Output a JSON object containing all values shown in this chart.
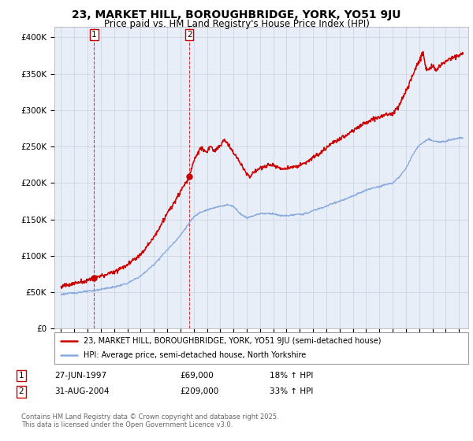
{
  "title": "23, MARKET HILL, BOROUGHBRIDGE, YORK, YO51 9JU",
  "subtitle": "Price paid vs. HM Land Registry's House Price Index (HPI)",
  "ylabel_ticks": [
    "£0",
    "£50K",
    "£100K",
    "£150K",
    "£200K",
    "£250K",
    "£300K",
    "£350K",
    "£400K"
  ],
  "ytick_values": [
    0,
    50000,
    100000,
    150000,
    200000,
    250000,
    300000,
    350000,
    400000
  ],
  "ylim": [
    0,
    415000
  ],
  "sale1": {
    "date_num": 1997.49,
    "price": 69000,
    "label": "1",
    "date_str": "27-JUN-1997",
    "pct": "18% ↑ HPI"
  },
  "sale2": {
    "date_num": 2004.67,
    "price": 209000,
    "label": "2",
    "date_str": "31-AUG-2004",
    "pct": "33% ↑ HPI"
  },
  "legend_line1": "23, MARKET HILL, BOROUGHBRIDGE, YORK, YO51 9JU (semi-detached house)",
  "legend_line2": "HPI: Average price, semi-detached house, North Yorkshire",
  "footer": "Contains HM Land Registry data © Crown copyright and database right 2025.\nThis data is licensed under the Open Government Licence v3.0.",
  "price_color": "#cc0000",
  "hpi_color": "#88aadd",
  "plot_bg": "#e8eef8",
  "grid_color": "#c8d0dc",
  "title_fontsize": 10,
  "subtitle_fontsize": 8.5,
  "tick_fontsize": 7.5
}
